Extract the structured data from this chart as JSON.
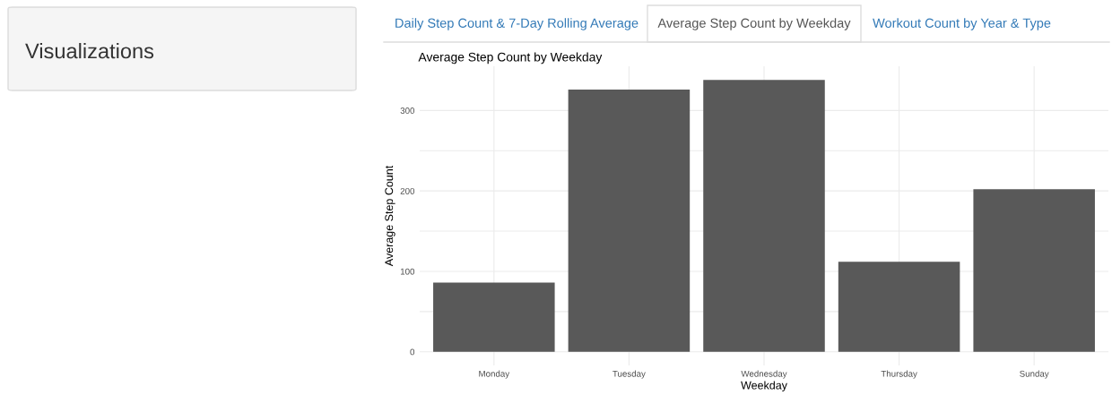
{
  "chart_data": {
    "type": "bar",
    "title": "Average Step Count by Weekday",
    "xlabel": "Weekday",
    "ylabel": "Average Step Count",
    "categories": [
      "Monday",
      "Tuesday",
      "Wednesday",
      "Thursday",
      "Sunday"
    ],
    "values": [
      86,
      326,
      338,
      112,
      202
    ],
    "color": "#595959",
    "ylim": [
      -17,
      355
    ],
    "yticks": [
      0,
      {
        "value": 50,
        "label": null
      },
      100,
      {
        "value": 150,
        "label": null
      },
      200,
      {
        "value": 250,
        "label": null
      },
      300
    ],
    "grid": true,
    "annotations": [
      "Visualizations",
      "Daily Step Count & 7-Day Rolling Average",
      "Average Step Count by Weekday",
      "Workout Count by Year & Type"
    ]
  }
}
